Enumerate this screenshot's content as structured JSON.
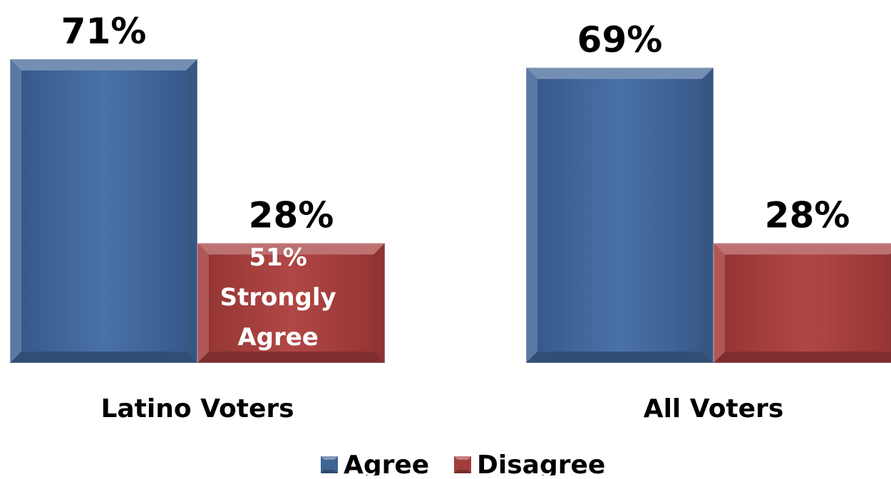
{
  "chart_data": {
    "type": "bar",
    "categories": [
      "Latino Voters",
      "All Voters"
    ],
    "series": [
      {
        "name": "Agree",
        "values": [
          71,
          69
        ],
        "color": "#3F6496"
      },
      {
        "name": "Disagree",
        "values": [
          28,
          28
        ],
        "color": "#A23C3B"
      }
    ],
    "value_labels": [
      [
        "71%",
        "69%"
      ],
      [
        "28%",
        "28%"
      ]
    ],
    "annotation": {
      "lines": [
        "51%",
        "Strongly",
        "Agree"
      ],
      "category_index": 0,
      "series_index": 1
    },
    "ylim": [
      0,
      71
    ],
    "grid": false,
    "legend_position": "bottom-center",
    "xlabel": "",
    "ylabel": ""
  }
}
